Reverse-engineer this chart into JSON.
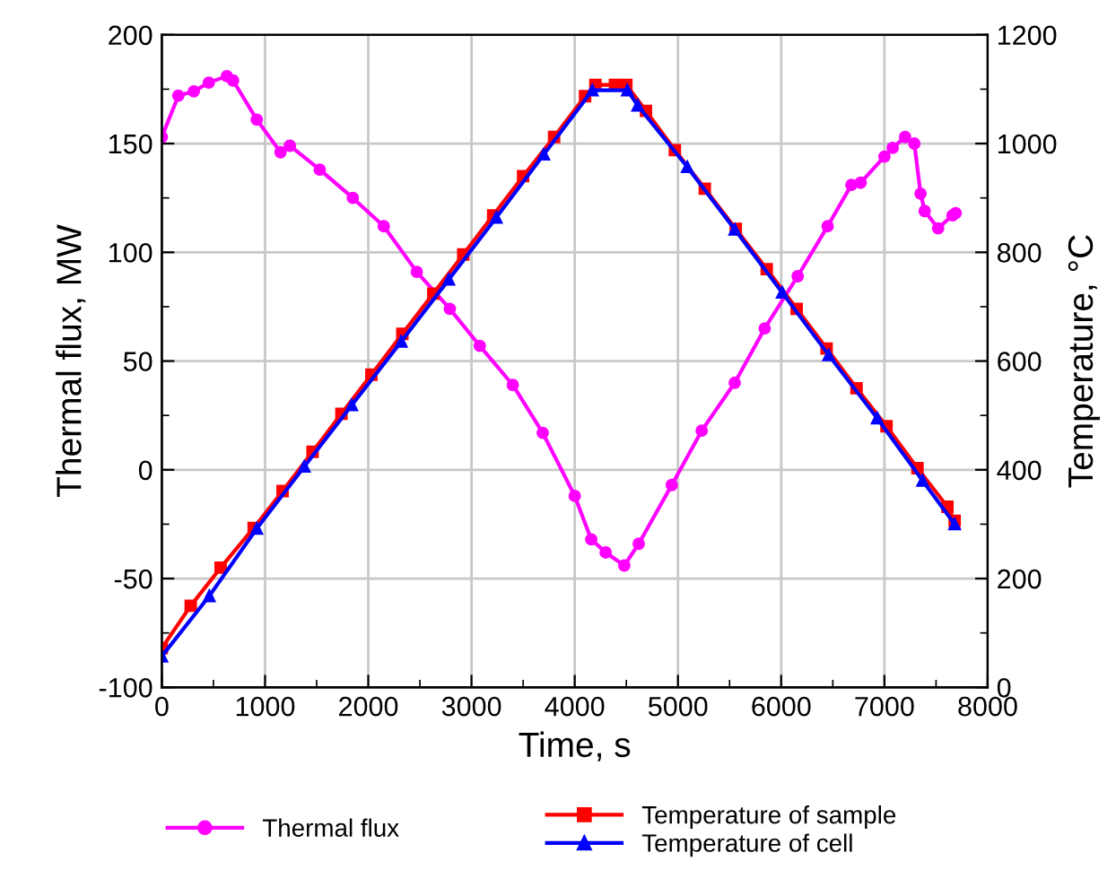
{
  "chart_data": {
    "type": "line",
    "xlabel": "Time, s",
    "ylabel": "Thermal flux, MW",
    "y2label": "Temperature, °C",
    "xlim": [
      0,
      8000
    ],
    "xticks": [
      0,
      {
        "value": 500,
        "label": null
      },
      1000,
      {
        "value": 1500,
        "label": null
      },
      2000,
      {
        "value": 2500,
        "label": null
      },
      3000,
      {
        "value": 3500,
        "label": null
      },
      4000,
      {
        "value": 4500,
        "label": null
      },
      5000,
      {
        "value": 5500,
        "label": null
      },
      6000,
      {
        "value": 6500,
        "label": null
      },
      7000,
      {
        "value": 7500,
        "label": null
      },
      8000
    ],
    "ylim": [
      -100,
      200
    ],
    "yticks": [
      -100,
      {
        "value": -75,
        "label": null
      },
      -50,
      {
        "value": -25,
        "label": null
      },
      0,
      {
        "value": 25,
        "label": null
      },
      50,
      {
        "value": 75,
        "label": null
      },
      100,
      {
        "value": 125,
        "label": null
      },
      150,
      {
        "value": 175,
        "label": null
      },
      200
    ],
    "y2lim": [
      0,
      1200
    ],
    "y2ticks": [
      0,
      {
        "value": 100,
        "label": null
      },
      200,
      {
        "value": 300,
        "label": null
      },
      400,
      {
        "value": 500,
        "label": null
      },
      600,
      {
        "value": 700,
        "label": null
      },
      800,
      {
        "value": 900,
        "label": null
      },
      1000,
      {
        "value": 1100,
        "label": null
      },
      1200
    ],
    "grid": true,
    "legend": "bottom",
    "line_style": "solid",
    "series": [
      {
        "name": "Thermal flux",
        "color": "#ff00ff",
        "marker": "circle",
        "x": [
          0,
          160,
          310,
          455,
          630,
          690,
          920,
          1150,
          1240,
          1530,
          1850,
          2150,
          2470,
          2790,
          3080,
          3400,
          3690,
          4000,
          4160,
          4300,
          4480,
          4620,
          4940,
          5230,
          5550,
          5840,
          6160,
          6450,
          6680,
          6770,
          7000,
          7080,
          7200,
          7290,
          7350,
          7390,
          7520,
          7660,
          7690
        ],
        "values": [
          153,
          172,
          174,
          178,
          181,
          179,
          161,
          146,
          149,
          138,
          125,
          112,
          91,
          74,
          57,
          39,
          17,
          -12,
          -32,
          -38,
          -44,
          -34,
          -7,
          18,
          40,
          65,
          89,
          112,
          131,
          132,
          144,
          148,
          153,
          150,
          127,
          119,
          111,
          117,
          118
        ]
      },
      {
        "name": "Temperature of sample",
        "color": "#ff0000",
        "marker": "square",
        "axis": "y2",
        "x": [
          0,
          280,
          570,
          890,
          1170,
          1460,
          1740,
          2030,
          2330,
          2630,
          2920,
          3210,
          3500,
          3800,
          4100,
          4200,
          4390,
          4500,
          4690,
          4970,
          5260,
          5560,
          5860,
          6150,
          6440,
          6730,
          7020,
          7320,
          7610,
          7680
        ],
        "values": [
          72,
          150,
          220,
          293,
          361,
          433,
          503,
          575,
          650,
          724,
          796,
          868,
          940,
          1012,
          1087,
          1108,
          1108,
          1108,
          1060,
          988,
          917,
          843,
          769,
          696,
          623,
          550,
          480,
          403,
          332,
          306
        ]
      },
      {
        "name": "Temperature of cell",
        "color": "#0000ff",
        "marker": "triangle",
        "axis": "y2",
        "x": [
          0,
          460,
          920,
          1380,
          1840,
          2320,
          2780,
          3240,
          3700,
          4170,
          4510,
          4610,
          5090,
          5550,
          6010,
          6460,
          6930,
          7370,
          7680
        ],
        "values": [
          57,
          168,
          292,
          406,
          519,
          636,
          750,
          864,
          980,
          1098,
          1098,
          1070,
          957,
          842,
          726,
          611,
          495,
          380,
          300
        ]
      }
    ]
  }
}
